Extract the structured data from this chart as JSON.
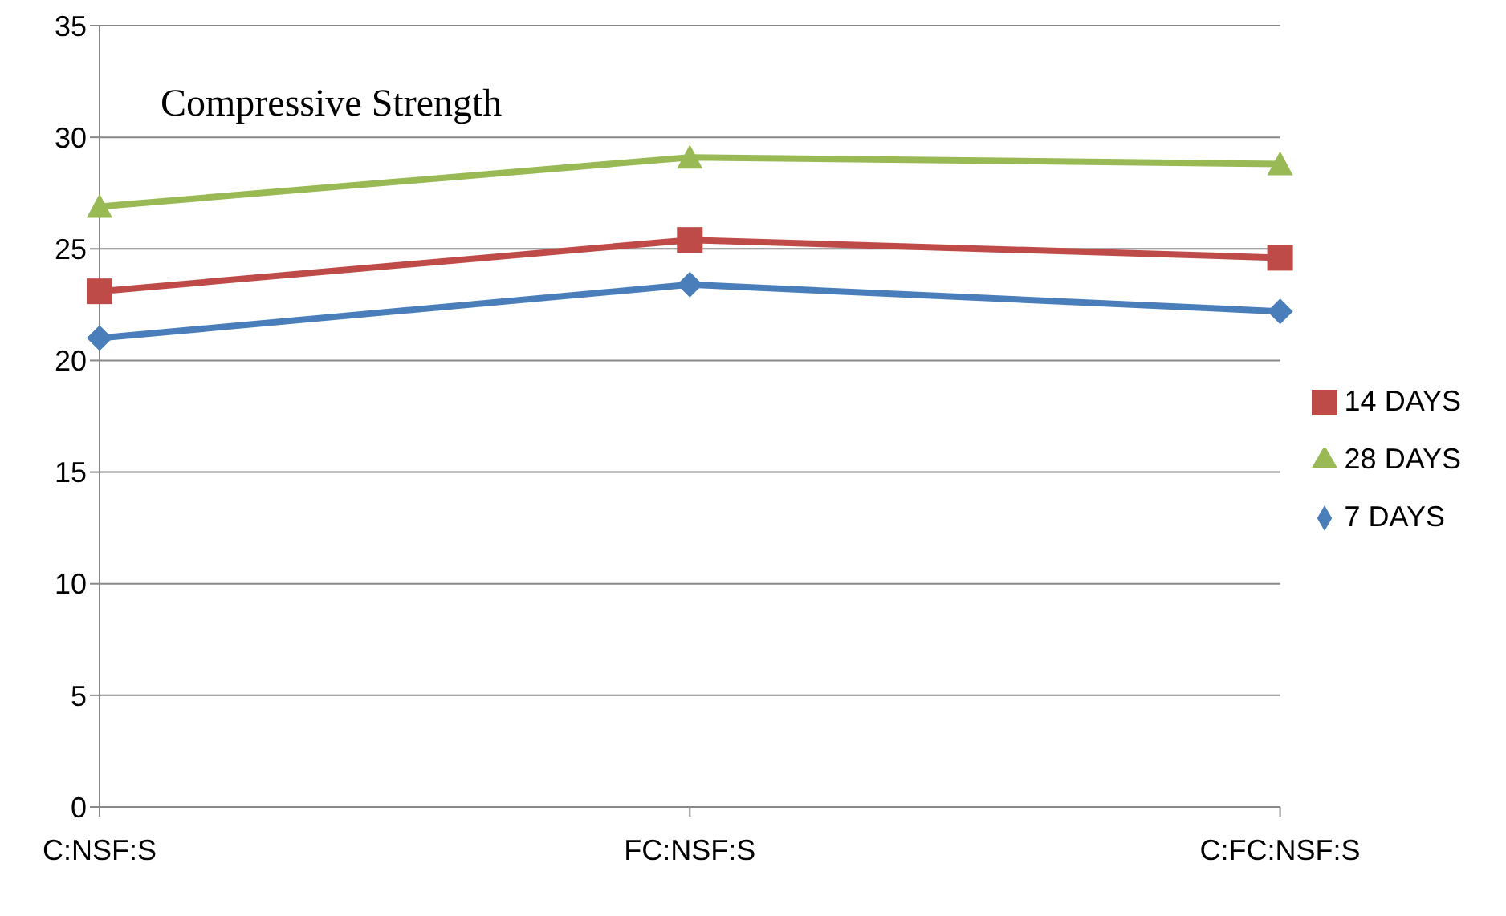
{
  "chart_data": {
    "type": "line",
    "title": "Compressive Strength",
    "categories": [
      "C:NSF:S",
      "FC:NSF:S",
      "C:FC:NSF:S"
    ],
    "series": [
      {
        "name": "7 DAYS",
        "color": "#4a7ebb",
        "marker": "diamond",
        "values": [
          21.0,
          23.4,
          22.2
        ]
      },
      {
        "name": "14 DAYS",
        "color": "#be4b48",
        "marker": "square",
        "values": [
          23.1,
          25.4,
          24.6
        ]
      },
      {
        "name": "28 DAYS",
        "color": "#98b954",
        "marker": "triangle",
        "values": [
          26.9,
          29.1,
          28.8
        ]
      }
    ],
    "ylim": [
      0,
      35
    ],
    "yticks": [
      0,
      5,
      10,
      15,
      20,
      25,
      30,
      35
    ],
    "grid": "y",
    "legend": "right",
    "line_style": "solid"
  }
}
